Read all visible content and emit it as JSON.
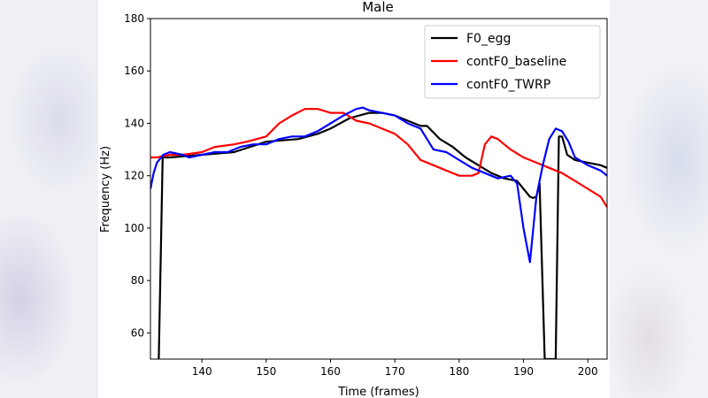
{
  "chart_data": {
    "type": "line",
    "title": "Male",
    "xlabel": "Time (frames)",
    "ylabel": "Frequency (Hz)",
    "xlim": [
      132,
      203
    ],
    "ylim": [
      50,
      180
    ],
    "xticks": [
      140,
      150,
      160,
      170,
      180,
      190,
      200
    ],
    "yticks": [
      60,
      80,
      100,
      120,
      140,
      160,
      180
    ],
    "legend_position": "top-right",
    "series": [
      {
        "name": "F0_egg",
        "color": "#000000",
        "x": [
          133.3,
          133.9,
          135,
          140,
          145,
          150,
          155,
          158,
          160,
          163,
          166,
          168,
          170,
          172,
          174,
          175,
          177,
          179,
          181,
          183,
          185,
          187,
          189,
          190,
          191,
          191.5,
          192,
          192.5,
          193.3,
          194.2,
          195,
          195.5,
          196,
          196.8,
          198,
          200,
          202,
          203
        ],
        "y": [
          50,
          127,
          127,
          128,
          129,
          133,
          134,
          136,
          138,
          142,
          144,
          144,
          143,
          141,
          139,
          139,
          134,
          131,
          127,
          124,
          121,
          119,
          118,
          115,
          112,
          111.5,
          112,
          117,
          50,
          50,
          50,
          135,
          135,
          128,
          126,
          125,
          124,
          123
        ]
      },
      {
        "name": "contF0_baseline",
        "color": "#ff0000",
        "x": [
          132,
          133,
          135,
          137,
          140,
          142,
          145,
          147,
          150,
          152,
          154,
          156,
          158,
          160,
          162,
          164,
          166,
          168,
          170,
          172,
          174,
          176,
          178,
          180,
          182,
          183,
          184,
          185,
          186,
          187,
          188,
          190,
          192,
          194,
          196,
          198,
          200,
          202,
          203
        ],
        "y": [
          127,
          127,
          128,
          128,
          129,
          131,
          132,
          133,
          135,
          140,
          143,
          145.5,
          145.5,
          144,
          144,
          141,
          140,
          138,
          136,
          132,
          126,
          124,
          122,
          120,
          120,
          121,
          132,
          135,
          134,
          132,
          130,
          127,
          125,
          123,
          121,
          118,
          115,
          112,
          108
        ]
      },
      {
        "name": "contF0_TWRP",
        "color": "#0000ff",
        "x": [
          132,
          132.5,
          133,
          134,
          135,
          137,
          138,
          140,
          142,
          144,
          146,
          148,
          150,
          152,
          154,
          156,
          158,
          160,
          162,
          164,
          165,
          166,
          168,
          170,
          172,
          174,
          176,
          178,
          180,
          182,
          184,
          186,
          188,
          189,
          190,
          191,
          192,
          193,
          194,
          195,
          196,
          197,
          198,
          200,
          202,
          203
        ],
        "y": [
          115,
          121,
          125,
          128,
          129,
          128,
          127,
          128,
          129,
          129,
          131,
          132,
          132,
          134,
          135,
          135,
          137,
          140,
          143,
          145.5,
          146,
          145,
          144,
          143,
          140,
          138,
          130,
          129,
          126,
          123,
          121,
          119,
          120,
          117,
          100,
          87,
          112,
          124,
          134,
          138,
          137,
          133,
          127,
          124,
          122,
          120
        ]
      }
    ]
  }
}
